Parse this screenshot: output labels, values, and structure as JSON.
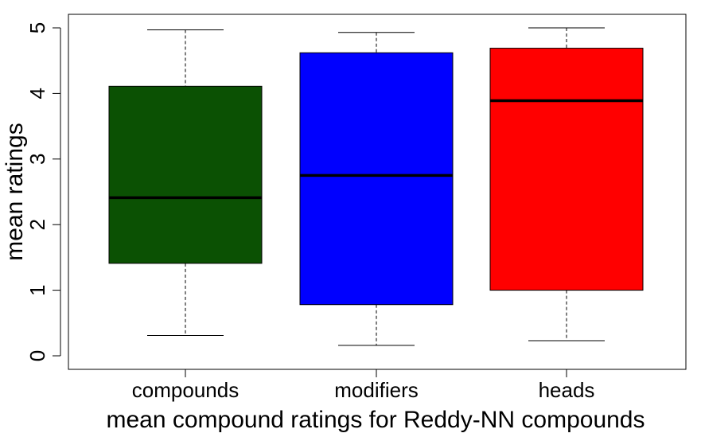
{
  "chart_data": {
    "type": "boxplot",
    "title": "",
    "xlabel": "mean compound ratings for Reddy-NN compounds",
    "ylabel": "mean ratings",
    "ylim": [
      0,
      5
    ],
    "yticks": [
      "0",
      "1",
      "2",
      "3",
      "4",
      "5"
    ],
    "grid": false,
    "categories": [
      "compounds",
      "modifiers",
      "heads"
    ],
    "boxes": [
      {
        "label": "compounds",
        "color": "#0B5103",
        "whisker_low": 0.31,
        "q1": 1.41,
        "median": 2.41,
        "q3": 4.11,
        "whisker_high": 4.97
      },
      {
        "label": "modifiers",
        "color": "#0000FF",
        "whisker_low": 0.16,
        "q1": 0.78,
        "median": 2.75,
        "q3": 4.62,
        "whisker_high": 4.93
      },
      {
        "label": "heads",
        "color": "#FF0000",
        "whisker_low": 0.23,
        "q1": 1.0,
        "median": 3.89,
        "q3": 4.69,
        "whisker_high": 5.0
      }
    ]
  }
}
